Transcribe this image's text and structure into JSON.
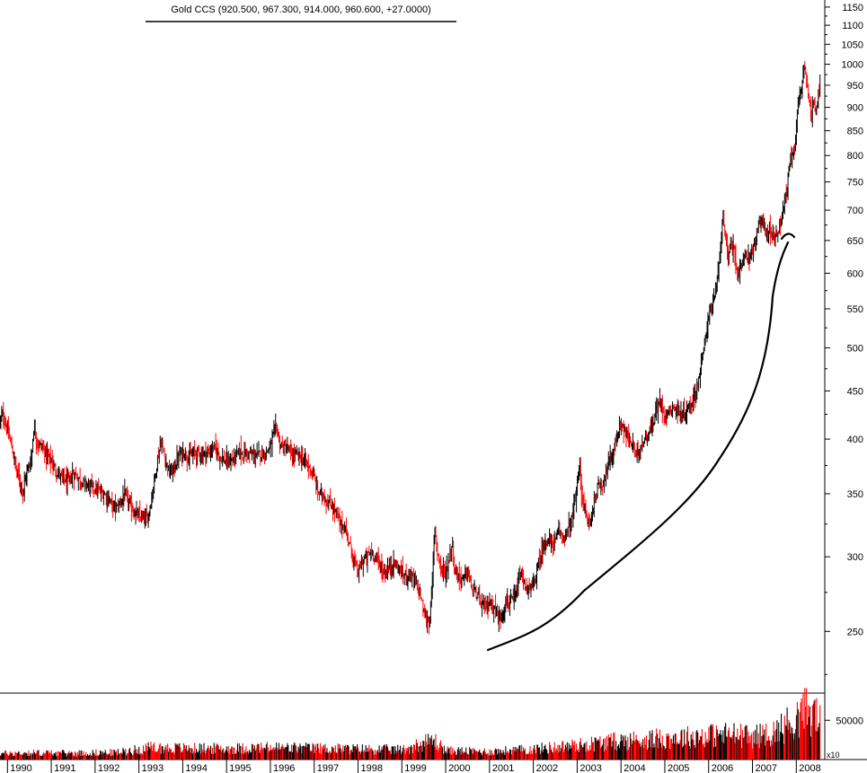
{
  "title": "Gold CCS (920.500, 967.300, 914.000, 960.600, +27.0000)",
  "chart_data": {
    "type": "bar",
    "subtype": "ohlc-weekly-with-volume",
    "y_scale": "log",
    "ylim": [
      215,
      1170
    ],
    "price_ticks": [
      "1150",
      "1100",
      "1050",
      "1000",
      "950",
      "900",
      "850",
      "800",
      "750",
      "700",
      "650",
      "600",
      "550",
      "500",
      "450",
      "400",
      "350",
      "300",
      "250"
    ],
    "volume_ticks": [
      "50000"
    ],
    "volume_multiplier": "x10",
    "years": [
      "1990",
      "1991",
      "1992",
      "1993",
      "1994",
      "1995",
      "1996",
      "1997",
      "1998",
      "1999",
      "2000",
      "2001",
      "2002",
      "2003",
      "2004",
      "2005",
      "2006",
      "2007",
      "2008"
    ],
    "up_color": "#000000",
    "down_color": "#ff0000",
    "price_points": [
      [
        1989.83,
        418
      ],
      [
        1989.9,
        425
      ],
      [
        1990.0,
        408
      ],
      [
        1990.1,
        392
      ],
      [
        1990.2,
        372
      ],
      [
        1990.3,
        360
      ],
      [
        1990.35,
        352
      ],
      [
        1990.45,
        370
      ],
      [
        1990.55,
        382
      ],
      [
        1990.6,
        412
      ],
      [
        1990.7,
        395
      ],
      [
        1990.8,
        392
      ],
      [
        1990.9,
        385
      ],
      [
        1991.0,
        380
      ],
      [
        1991.1,
        370
      ],
      [
        1991.2,
        366
      ],
      [
        1991.3,
        362
      ],
      [
        1991.4,
        360
      ],
      [
        1991.5,
        368
      ],
      [
        1991.6,
        365
      ],
      [
        1991.7,
        360
      ],
      [
        1991.8,
        358
      ],
      [
        1991.9,
        356
      ],
      [
        1992.0,
        354
      ],
      [
        1992.1,
        352
      ],
      [
        1992.2,
        350
      ],
      [
        1992.3,
        346
      ],
      [
        1992.4,
        340
      ],
      [
        1992.5,
        338
      ],
      [
        1992.6,
        345
      ],
      [
        1992.7,
        348
      ],
      [
        1992.8,
        340
      ],
      [
        1992.9,
        334
      ],
      [
        1993.0,
        331
      ],
      [
        1993.1,
        329
      ],
      [
        1993.2,
        330
      ],
      [
        1993.3,
        348
      ],
      [
        1993.4,
        375
      ],
      [
        1993.5,
        398
      ],
      [
        1993.6,
        380
      ],
      [
        1993.7,
        368
      ],
      [
        1993.8,
        372
      ],
      [
        1993.9,
        383
      ],
      [
        1994.0,
        388
      ],
      [
        1994.1,
        384
      ],
      [
        1994.2,
        384
      ],
      [
        1994.3,
        388
      ],
      [
        1994.4,
        385
      ],
      [
        1994.5,
        386
      ],
      [
        1994.6,
        387
      ],
      [
        1994.7,
        392
      ],
      [
        1994.8,
        388
      ],
      [
        1994.9,
        381
      ],
      [
        1995.0,
        378
      ],
      [
        1995.1,
        379
      ],
      [
        1995.2,
        383
      ],
      [
        1995.3,
        388
      ],
      [
        1995.4,
        386
      ],
      [
        1995.5,
        386
      ],
      [
        1995.6,
        385
      ],
      [
        1995.7,
        384
      ],
      [
        1995.8,
        386
      ],
      [
        1995.9,
        387
      ],
      [
        1996.0,
        394
      ],
      [
        1996.1,
        408
      ],
      [
        1996.15,
        412
      ],
      [
        1996.2,
        396
      ],
      [
        1996.3,
        392
      ],
      [
        1996.4,
        390
      ],
      [
        1996.5,
        384
      ],
      [
        1996.6,
        385
      ],
      [
        1996.7,
        383
      ],
      [
        1996.8,
        378
      ],
      [
        1996.9,
        372
      ],
      [
        1997.0,
        364
      ],
      [
        1997.1,
        350
      ],
      [
        1997.2,
        350
      ],
      [
        1997.3,
        342
      ],
      [
        1997.4,
        340
      ],
      [
        1997.5,
        334
      ],
      [
        1997.6,
        325
      ],
      [
        1997.7,
        322
      ],
      [
        1997.8,
        310
      ],
      [
        1997.9,
        298
      ],
      [
        1998.0,
        288
      ],
      [
        1998.1,
        297
      ],
      [
        1998.2,
        300
      ],
      [
        1998.3,
        304
      ],
      [
        1998.4,
        300
      ],
      [
        1998.5,
        294
      ],
      [
        1998.6,
        288
      ],
      [
        1998.7,
        292
      ],
      [
        1998.8,
        295
      ],
      [
        1998.9,
        293
      ],
      [
        1999.0,
        288
      ],
      [
        1999.1,
        287
      ],
      [
        1999.2,
        288
      ],
      [
        1999.3,
        282
      ],
      [
        1999.4,
        276
      ],
      [
        1999.5,
        262
      ],
      [
        1999.55,
        258
      ],
      [
        1999.6,
        256
      ],
      [
        1999.65,
        260
      ],
      [
        1999.72,
        300
      ],
      [
        1999.75,
        325
      ],
      [
        1999.8,
        306
      ],
      [
        1999.85,
        298
      ],
      [
        1999.9,
        292
      ],
      [
        2000.0,
        288
      ],
      [
        2000.1,
        302
      ],
      [
        2000.15,
        310
      ],
      [
        2000.2,
        290
      ],
      [
        2000.3,
        286
      ],
      [
        2000.4,
        284
      ],
      [
        2000.5,
        290
      ],
      [
        2000.6,
        277
      ],
      [
        2000.7,
        274
      ],
      [
        2000.8,
        268
      ],
      [
        2000.9,
        265
      ],
      [
        2001.0,
        268
      ],
      [
        2001.1,
        266
      ],
      [
        2001.2,
        258
      ],
      [
        2001.3,
        262
      ],
      [
        2001.4,
        270
      ],
      [
        2001.5,
        268
      ],
      [
        2001.6,
        272
      ],
      [
        2001.7,
        288
      ],
      [
        2001.8,
        280
      ],
      [
        2001.9,
        276
      ],
      [
        2002.0,
        280
      ],
      [
        2002.1,
        292
      ],
      [
        2002.2,
        304
      ],
      [
        2002.3,
        314
      ],
      [
        2002.4,
        310
      ],
      [
        2002.5,
        312
      ],
      [
        2002.6,
        318
      ],
      [
        2002.7,
        315
      ],
      [
        2002.8,
        320
      ],
      [
        2002.9,
        332
      ],
      [
        2003.0,
        356
      ],
      [
        2003.05,
        378
      ],
      [
        2003.1,
        352
      ],
      [
        2003.2,
        330
      ],
      [
        2003.3,
        326
      ],
      [
        2003.4,
        346
      ],
      [
        2003.5,
        358
      ],
      [
        2003.6,
        360
      ],
      [
        2003.7,
        376
      ],
      [
        2003.8,
        385
      ],
      [
        2003.9,
        400
      ],
      [
        2004.0,
        416
      ],
      [
        2004.1,
        405
      ],
      [
        2004.2,
        398
      ],
      [
        2004.3,
        392
      ],
      [
        2004.35,
        380
      ],
      [
        2004.4,
        392
      ],
      [
        2004.5,
        398
      ],
      [
        2004.6,
        404
      ],
      [
        2004.7,
        412
      ],
      [
        2004.8,
        428
      ],
      [
        2004.9,
        440
      ],
      [
        2005.0,
        424
      ],
      [
        2005.1,
        428
      ],
      [
        2005.2,
        434
      ],
      [
        2005.3,
        428
      ],
      [
        2005.4,
        422
      ],
      [
        2005.5,
        430
      ],
      [
        2005.6,
        436
      ],
      [
        2005.7,
        448
      ],
      [
        2005.8,
        470
      ],
      [
        2005.9,
        500
      ],
      [
        2006.0,
        545
      ],
      [
        2006.1,
        556
      ],
      [
        2006.15,
        568
      ],
      [
        2006.25,
        620
      ],
      [
        2006.33,
        700
      ],
      [
        2006.4,
        640
      ],
      [
        2006.45,
        614
      ],
      [
        2006.5,
        652
      ],
      [
        2006.6,
        632
      ],
      [
        2006.65,
        596
      ],
      [
        2006.7,
        604
      ],
      [
        2006.8,
        620
      ],
      [
        2006.9,
        625
      ],
      [
        2007.0,
        632
      ],
      [
        2007.1,
        660
      ],
      [
        2007.2,
        682
      ],
      [
        2007.3,
        668
      ],
      [
        2007.4,
        665
      ],
      [
        2007.5,
        658
      ],
      [
        2007.6,
        668
      ],
      [
        2007.7,
        705
      ],
      [
        2007.8,
        740
      ],
      [
        2007.85,
        790
      ],
      [
        2007.9,
        800
      ],
      [
        2007.95,
        810
      ],
      [
        2008.0,
        860
      ],
      [
        2008.05,
        912
      ],
      [
        2008.1,
        940
      ],
      [
        2008.15,
        975
      ],
      [
        2008.2,
        1005
      ],
      [
        2008.25,
        950
      ],
      [
        2008.3,
        905
      ],
      [
        2008.35,
        880
      ],
      [
        2008.4,
        920
      ],
      [
        2008.45,
        895
      ],
      [
        2008.5,
        935
      ],
      [
        2008.55,
        960
      ]
    ],
    "volume_points": [
      [
        1989.83,
        8000
      ],
      [
        1990.5,
        9000
      ],
      [
        1991.5,
        8500
      ],
      [
        1992.5,
        9500
      ],
      [
        1993.3,
        16000
      ],
      [
        1994.0,
        15000
      ],
      [
        1995.0,
        14500
      ],
      [
        1996.0,
        16000
      ],
      [
        1997.0,
        15000
      ],
      [
        1998.0,
        14000
      ],
      [
        1999.0,
        13000
      ],
      [
        1999.73,
        26000
      ],
      [
        2000.0,
        12000
      ],
      [
        2001.0,
        10500
      ],
      [
        2002.0,
        14000
      ],
      [
        2003.0,
        19000
      ],
      [
        2004.0,
        25000
      ],
      [
        2005.0,
        28000
      ],
      [
        2006.0,
        32000
      ],
      [
        2006.5,
        34000
      ],
      [
        2007.0,
        30000
      ],
      [
        2007.5,
        36000
      ],
      [
        2008.0,
        55000
      ],
      [
        2008.2,
        65000
      ],
      [
        2008.55,
        58000
      ]
    ]
  }
}
